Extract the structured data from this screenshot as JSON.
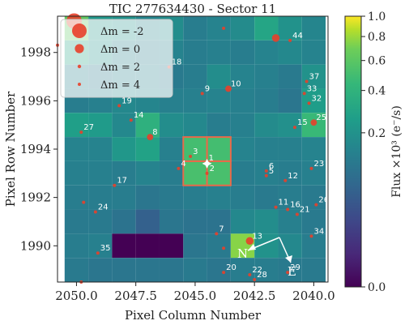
{
  "chart_data": {
    "type": "heatmap",
    "title": "TIC 277634430 - Sector 11",
    "xlabel": "Pixel Column Number",
    "ylabel": "Pixel Row Number",
    "xlim": [
      2050.8,
      2039.4
    ],
    "ylim": [
      1988.5,
      1999.5
    ],
    "xticks": [
      2050.0,
      2047.5,
      2045.0,
      2042.5,
      2040.0
    ],
    "xtick_labels": [
      "2050.0",
      "2047.5",
      "2045.0",
      "2042.5",
      "2040.0"
    ],
    "yticks": [
      1990,
      1992,
      1994,
      1996,
      1998
    ],
    "ytick_labels": [
      "1990",
      "1992",
      "1994",
      "1996",
      "1998"
    ],
    "colorbar": {
      "label": "Flux ×10³ (e⁻/s)",
      "ticks": [
        0.0,
        0.2,
        0.4,
        0.6,
        0.8,
        1.0
      ],
      "tick_labels": [
        "0.0",
        "0.2",
        "0.4",
        "0.6",
        "0.8",
        "1.0"
      ],
      "scale": "power-law"
    },
    "pixel_grid": {
      "columns": [
        2050,
        2049,
        2048,
        2047,
        2046,
        2045,
        2044,
        2043,
        2042,
        2041,
        2040
      ],
      "rows": [
        1999,
        1998,
        1997,
        1996,
        1995,
        1994,
        1993,
        1992,
        1991,
        1990,
        1989
      ],
      "values": [
        [
          0.62,
          0.22,
          0.2,
          0.15,
          0.18,
          0.12,
          0.14,
          0.17,
          0.3,
          0.2,
          0.15
        ],
        [
          0.3,
          0.2,
          0.14,
          0.12,
          0.14,
          0.12,
          0.13,
          0.12,
          0.14,
          0.16,
          0.14
        ],
        [
          0.14,
          0.11,
          0.13,
          0.14,
          0.11,
          0.12,
          0.18,
          0.14,
          0.13,
          0.11,
          0.2
        ],
        [
          0.12,
          0.13,
          0.16,
          0.15,
          0.13,
          0.13,
          0.14,
          0.13,
          0.12,
          0.1,
          0.25
        ],
        [
          0.26,
          0.24,
          0.16,
          0.38,
          0.18,
          0.16,
          0.12,
          0.13,
          0.17,
          0.19,
          0.45
        ],
        [
          0.14,
          0.14,
          0.22,
          0.28,
          0.13,
          0.5,
          0.5,
          0.14,
          0.13,
          0.13,
          0.14
        ],
        [
          0.13,
          0.13,
          0.12,
          0.14,
          0.12,
          0.52,
          0.52,
          0.12,
          0.13,
          0.12,
          0.13
        ],
        [
          0.12,
          0.12,
          0.12,
          0.1,
          0.11,
          0.12,
          0.13,
          0.12,
          0.11,
          0.12,
          0.11
        ],
        [
          0.11,
          0.11,
          0.09,
          0.05,
          0.1,
          0.09,
          0.09,
          0.16,
          0.18,
          0.13,
          0.11
        ],
        [
          0.12,
          0.13,
          0.0,
          0.0,
          0.0,
          0.1,
          0.11,
          0.75,
          0.2,
          0.16,
          0.12
        ],
        [
          0.11,
          0.1,
          0.1,
          0.1,
          0.1,
          0.11,
          0.1,
          0.12,
          0.12,
          0.11,
          0.11
        ]
      ]
    },
    "aperture_pixels": [
      [
        2045,
        1994
      ],
      [
        2044,
        1994
      ],
      [
        2045,
        1993
      ],
      [
        2044,
        1993
      ]
    ],
    "target_marker": {
      "label": "1",
      "column": 2044.5,
      "row": 1993.4
    },
    "stars": [
      {
        "label": "",
        "column": 2050.1,
        "row": 1999.3,
        "dm": -2.3
      },
      {
        "label": "",
        "column": 2050.0,
        "row": 1998.9,
        "dm": 0
      },
      {
        "label": "",
        "column": 2050.8,
        "row": 1998.3,
        "dm": 3
      },
      {
        "label": "",
        "column": 2043.8,
        "row": 1999.0,
        "dm": 4
      },
      {
        "label": "",
        "column": 2041.6,
        "row": 1998.6,
        "dm": 0.5
      },
      {
        "label": "44",
        "column": 2041.0,
        "row": 1998.5,
        "dm": 4
      },
      {
        "label": "18",
        "column": 2046.1,
        "row": 1997.4,
        "dm": 4
      },
      {
        "label": "10",
        "column": 2043.6,
        "row": 1996.5,
        "dm": 1
      },
      {
        "label": "9",
        "column": 2044.7,
        "row": 1996.3,
        "dm": 4
      },
      {
        "label": "37",
        "column": 2040.3,
        "row": 1996.8,
        "dm": 4
      },
      {
        "label": "33",
        "column": 2040.4,
        "row": 1996.3,
        "dm": 4
      },
      {
        "label": "32",
        "column": 2040.2,
        "row": 1995.9,
        "dm": 4
      },
      {
        "label": "19",
        "column": 2048.2,
        "row": 1995.8,
        "dm": 4
      },
      {
        "label": "14",
        "column": 2047.7,
        "row": 1995.2,
        "dm": 4
      },
      {
        "label": "27",
        "column": 2049.8,
        "row": 1994.7,
        "dm": 2.5
      },
      {
        "label": "8",
        "column": 2046.9,
        "row": 1994.5,
        "dm": 1
      },
      {
        "label": "15",
        "column": 2040.8,
        "row": 1994.9,
        "dm": 4
      },
      {
        "label": "25",
        "column": 2040.0,
        "row": 1995.1,
        "dm": 1
      },
      {
        "label": "3",
        "column": 2045.2,
        "row": 1993.7,
        "dm": 3
      },
      {
        "label": "4",
        "column": 2045.7,
        "row": 1993.2,
        "dm": 4
      },
      {
        "label": "2",
        "column": 2044.5,
        "row": 1993.0,
        "dm": 4
      },
      {
        "label": "17",
        "column": 2048.4,
        "row": 1992.5,
        "dm": 3
      },
      {
        "label": "6",
        "column": 2042.0,
        "row": 1993.1,
        "dm": 4
      },
      {
        "label": "5",
        "column": 2042.0,
        "row": 1992.9,
        "dm": 4
      },
      {
        "label": "12",
        "column": 2041.2,
        "row": 1992.7,
        "dm": 4
      },
      {
        "label": "23",
        "column": 2040.1,
        "row": 1993.2,
        "dm": 4
      },
      {
        "label": "",
        "column": 2049.7,
        "row": 1991.8,
        "dm": 4
      },
      {
        "label": "24",
        "column": 2049.2,
        "row": 1991.4,
        "dm": 4
      },
      {
        "label": "11",
        "column": 2041.6,
        "row": 1991.6,
        "dm": 4
      },
      {
        "label": "16",
        "column": 2041.1,
        "row": 1991.5,
        "dm": 3
      },
      {
        "label": "21",
        "column": 2040.7,
        "row": 1991.3,
        "dm": 4
      },
      {
        "label": "26",
        "column": 2039.9,
        "row": 1991.7,
        "dm": 4
      },
      {
        "label": "7",
        "column": 2044.1,
        "row": 1990.5,
        "dm": 4
      },
      {
        "label": "13",
        "column": 2042.7,
        "row": 1990.2,
        "dm": 0.5
      },
      {
        "label": "34",
        "column": 2040.1,
        "row": 1990.4,
        "dm": 4
      },
      {
        "label": "35",
        "column": 2049.1,
        "row": 1989.7,
        "dm": 4
      },
      {
        "label": "",
        "column": 2043.8,
        "row": 1989.9,
        "dm": 4
      },
      {
        "label": "20",
        "column": 2043.8,
        "row": 1988.9,
        "dm": 4
      },
      {
        "label": "22",
        "column": 2042.7,
        "row": 1988.8,
        "dm": 4
      },
      {
        "label": "28",
        "column": 2042.5,
        "row": 1988.6,
        "dm": 4
      },
      {
        "label": "29",
        "column": 2041.1,
        "row": 1988.9,
        "dm": 4
      },
      {
        "label": "",
        "column": 2049.8,
        "row": 1988.5,
        "dm": 4
      }
    ],
    "legend": {
      "placement": "top-left",
      "entries": [
        {
          "label": "Δm = -2",
          "dm": -2
        },
        {
          "label": "Δm = 0",
          "dm": 0
        },
        {
          "label": "Δm = 2",
          "dm": 2
        },
        {
          "label": "Δm = 4",
          "dm": 4
        }
      ]
    },
    "compass": {
      "north_label": "N",
      "east_label": "E"
    },
    "colors": {
      "star_fill": "#e8402a",
      "aperture_edge": "#e86a4a",
      "target_marker": "#ffffff",
      "compass": "#ffffff"
    }
  }
}
